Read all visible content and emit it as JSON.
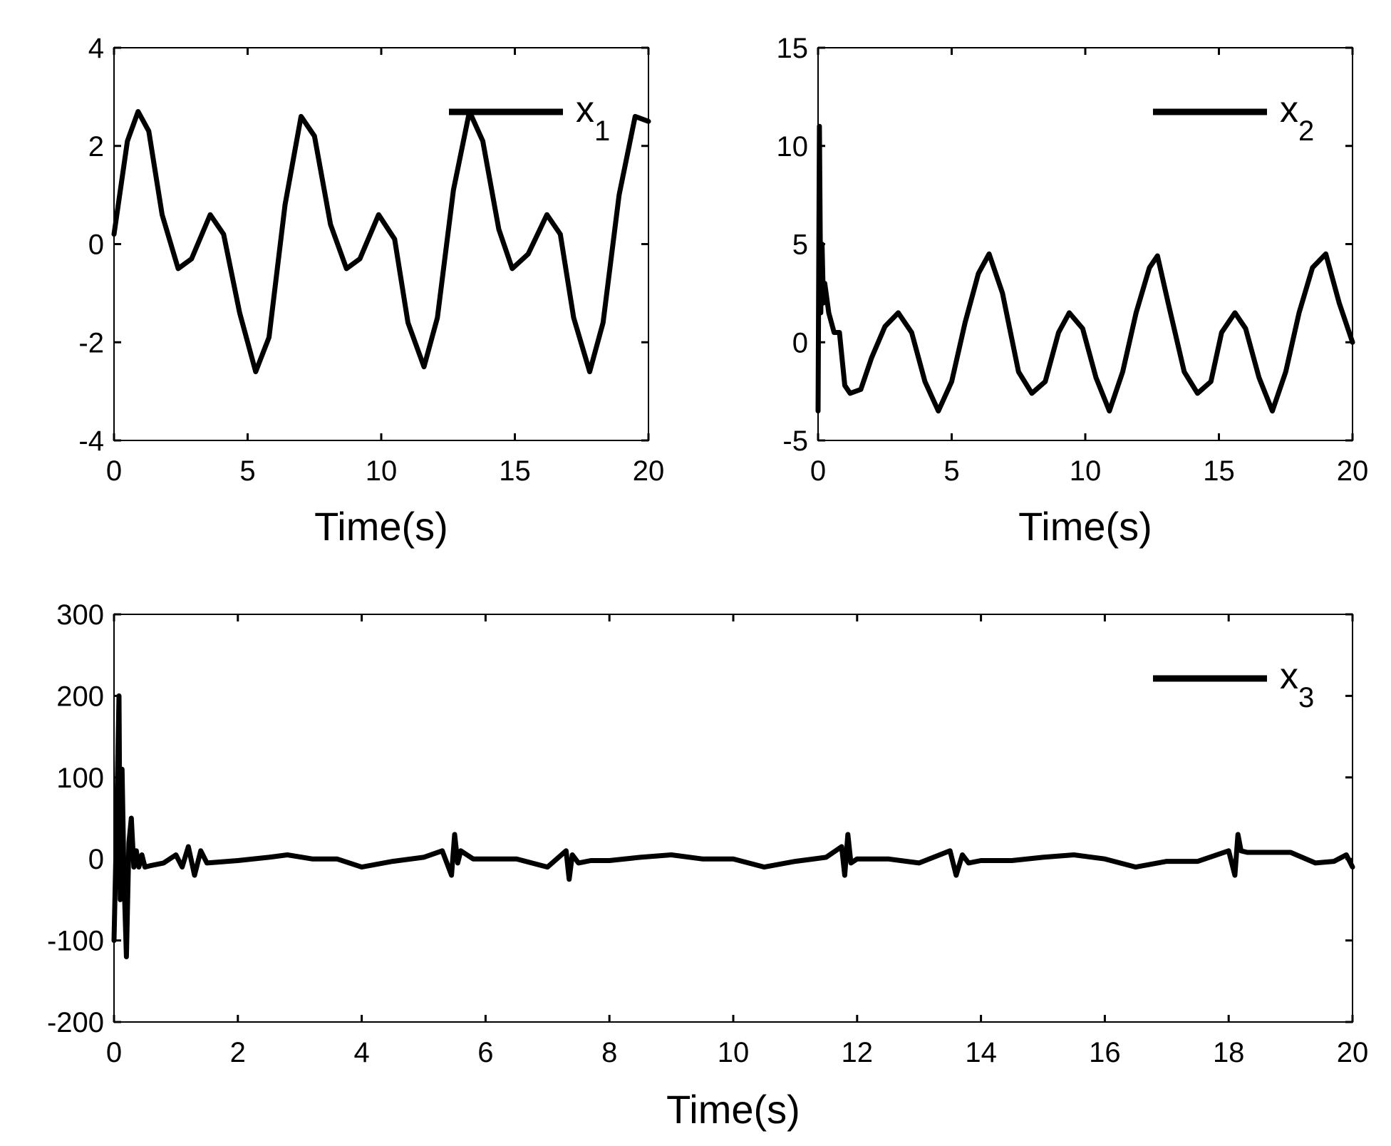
{
  "colors": {
    "line": "#000000",
    "axes": "#000000",
    "background": "#ffffff"
  },
  "chart_data": [
    {
      "id": "x1",
      "type": "line",
      "title": "",
      "xlabel": "Time(s)",
      "ylabel": "",
      "xlim": [
        0,
        20
      ],
      "ylim": [
        -4,
        4
      ],
      "xticks": [
        0,
        5,
        10,
        15,
        20
      ],
      "xtick_labels": [
        "0",
        "5",
        "10",
        "15",
        "20"
      ],
      "yticks": [
        -4,
        -2,
        0,
        2,
        4
      ],
      "ytick_labels": [
        "-4",
        "-2",
        "0",
        "2",
        "4"
      ],
      "grid": false,
      "legend": {
        "name": "x",
        "subscript": "1",
        "placement": "top-right"
      },
      "series": [
        {
          "name": "x1",
          "x": [
            0,
            0.5,
            0.9,
            1.3,
            1.8,
            2.4,
            2.9,
            3.6,
            4.1,
            4.7,
            5.3,
            5.8,
            6.4,
            7.0,
            7.5,
            8.1,
            8.7,
            9.2,
            9.9,
            10.5,
            11.0,
            11.6,
            12.1,
            12.7,
            13.3,
            13.8,
            14.4,
            14.9,
            15.5,
            16.2,
            16.7,
            17.2,
            17.8,
            18.3,
            18.9,
            19.5,
            20.0
          ],
          "y": [
            0.2,
            2.1,
            2.7,
            2.3,
            0.6,
            -0.5,
            -0.3,
            0.6,
            0.2,
            -1.4,
            -2.6,
            -1.9,
            0.8,
            2.6,
            2.2,
            0.4,
            -0.5,
            -0.3,
            0.6,
            0.1,
            -1.6,
            -2.5,
            -1.5,
            1.1,
            2.7,
            2.1,
            0.3,
            -0.5,
            -0.2,
            0.6,
            0.2,
            -1.5,
            -2.6,
            -1.6,
            1.0,
            2.6,
            2.5
          ]
        }
      ]
    },
    {
      "id": "x2",
      "type": "line",
      "title": "",
      "xlabel": "Time(s)",
      "ylabel": "",
      "xlim": [
        0,
        20
      ],
      "ylim": [
        -5,
        15
      ],
      "xticks": [
        0,
        5,
        10,
        15,
        20
      ],
      "xtick_labels": [
        "0",
        "5",
        "10",
        "15",
        "20"
      ],
      "yticks": [
        -5,
        0,
        5,
        10,
        15
      ],
      "ytick_labels": [
        "-5",
        "0",
        "5",
        "10",
        "15"
      ],
      "grid": false,
      "legend": {
        "name": "x",
        "subscript": "2",
        "placement": "top-right"
      },
      "series": [
        {
          "name": "x2",
          "x": [
            0,
            0.05,
            0.1,
            0.15,
            0.2,
            0.25,
            0.3,
            0.4,
            0.6,
            0.8,
            1.0,
            1.2,
            1.6,
            2.0,
            2.5,
            3.0,
            3.5,
            4.0,
            4.5,
            5.0,
            5.5,
            6.0,
            6.4,
            6.9,
            7.5,
            8.0,
            8.5,
            9.0,
            9.4,
            9.9,
            10.4,
            10.9,
            11.4,
            11.9,
            12.4,
            12.7,
            13.1,
            13.7,
            14.2,
            14.7,
            15.1,
            15.6,
            16.0,
            16.5,
            17.0,
            17.5,
            18.0,
            18.5,
            19.0,
            19.5,
            20.0
          ],
          "y": [
            -3.5,
            11.0,
            1.5,
            5.0,
            2.0,
            3.0,
            2.5,
            1.5,
            0.5,
            0.5,
            -2.2,
            -2.6,
            -2.4,
            -0.8,
            0.8,
            1.5,
            0.5,
            -2.0,
            -3.5,
            -2.0,
            1.0,
            3.5,
            4.5,
            2.5,
            -1.5,
            -2.6,
            -2.0,
            0.5,
            1.5,
            0.7,
            -1.8,
            -3.5,
            -1.5,
            1.5,
            3.8,
            4.4,
            2.0,
            -1.5,
            -2.6,
            -2.0,
            0.5,
            1.5,
            0.7,
            -1.8,
            -3.5,
            -1.5,
            1.5,
            3.8,
            4.5,
            2.0,
            0.0
          ]
        }
      ]
    },
    {
      "id": "x3",
      "type": "line",
      "title": "",
      "xlabel": "Time(s)",
      "ylabel": "",
      "xlim": [
        0,
        20
      ],
      "ylim": [
        -200,
        300
      ],
      "xticks": [
        0,
        2,
        4,
        6,
        8,
        10,
        12,
        14,
        16,
        18,
        20
      ],
      "xtick_labels": [
        "0",
        "2",
        "4",
        "6",
        "8",
        "10",
        "12",
        "14",
        "16",
        "18",
        "20"
      ],
      "yticks": [
        -200,
        -100,
        0,
        100,
        200,
        300
      ],
      "ytick_labels": [
        "-200",
        "-100",
        "0",
        "100",
        "200",
        "300"
      ],
      "grid": false,
      "legend": {
        "name": "x",
        "subscript": "3",
        "placement": "top-right"
      },
      "series": [
        {
          "name": "x3",
          "x": [
            0,
            0.04,
            0.08,
            0.1,
            0.13,
            0.16,
            0.2,
            0.24,
            0.28,
            0.32,
            0.36,
            0.4,
            0.45,
            0.5,
            0.6,
            0.8,
            1.0,
            1.1,
            1.2,
            1.3,
            1.4,
            1.5,
            2.0,
            2.5,
            2.8,
            3.2,
            3.6,
            4.0,
            4.5,
            5.0,
            5.3,
            5.45,
            5.5,
            5.55,
            5.6,
            5.8,
            6.5,
            7.0,
            7.3,
            7.35,
            7.4,
            7.5,
            7.7,
            8.0,
            8.5,
            9.0,
            9.5,
            10.0,
            10.5,
            11.0,
            11.5,
            11.75,
            11.8,
            11.85,
            11.9,
            12.0,
            12.5,
            13.0,
            13.5,
            13.6,
            13.7,
            13.8,
            14.0,
            14.5,
            15.0,
            15.5,
            16.0,
            16.5,
            17.0,
            17.5,
            18.0,
            18.1,
            18.15,
            18.2,
            18.3,
            18.6,
            19.0,
            19.4,
            19.7,
            19.9,
            20.0
          ],
          "y": [
            -100,
            40,
            200,
            -50,
            110,
            -20,
            -120,
            20,
            50,
            -10,
            10,
            -10,
            5,
            -10,
            -8,
            -5,
            5,
            -10,
            15,
            -20,
            10,
            -5,
            -2,
            2,
            5,
            0,
            0,
            -10,
            -3,
            2,
            10,
            -20,
            30,
            -5,
            10,
            0,
            0,
            -10,
            10,
            -25,
            5,
            -5,
            -2,
            -2,
            2,
            5,
            0,
            0,
            -10,
            -3,
            2,
            15,
            -20,
            30,
            -5,
            0,
            0,
            -5,
            10,
            -20,
            5,
            -5,
            -2,
            -2,
            2,
            5,
            0,
            -10,
            -3,
            -3,
            10,
            -20,
            30,
            10,
            8,
            8,
            8,
            -5,
            -3,
            5,
            -10
          ]
        }
      ]
    }
  ]
}
